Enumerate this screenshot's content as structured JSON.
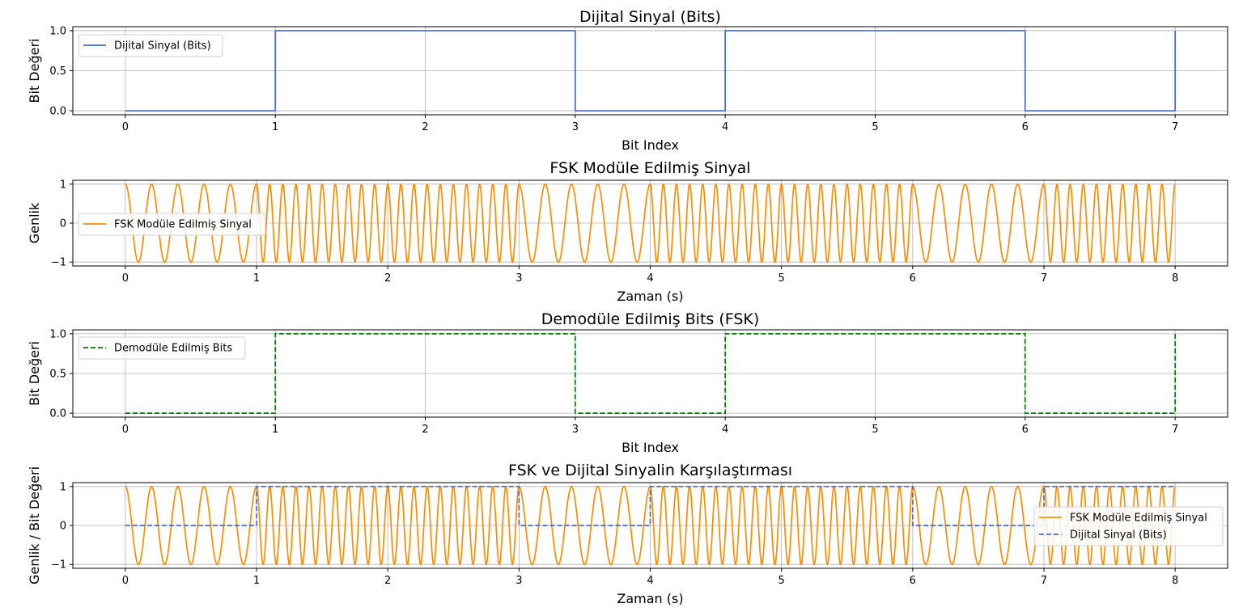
{
  "chart_data": [
    {
      "type": "line",
      "title": "Dijital Sinyal (Bits)",
      "xlabel": "Bit Index",
      "ylabel": "Bit Değeri",
      "xlim": [
        -0.35,
        7.35
      ],
      "ylim": [
        -0.05,
        1.05
      ],
      "xticks": [
        "0",
        "1",
        "2",
        "3",
        "4",
        "5",
        "6",
        "7"
      ],
      "yticks": [
        "0.0",
        "0.5",
        "1.0"
      ],
      "grid": true,
      "legend_position": "upper-left",
      "series": [
        {
          "name": "Dijital Sinyal (Bits)",
          "kind": "step",
          "color": "#4169e1",
          "style": "solid",
          "x": [
            0,
            1,
            2,
            3,
            4,
            5,
            6,
            7
          ],
          "values": [
            0,
            1,
            1,
            0,
            1,
            1,
            0,
            1
          ]
        }
      ]
    },
    {
      "type": "line",
      "title": "FSK Modüle Edilmiş Sinyal",
      "xlabel": "Zaman (s)",
      "ylabel": "Genlik",
      "xlim": [
        -0.4,
        8.4
      ],
      "ylim": [
        -1.1,
        1.1
      ],
      "xticks": [
        "0",
        "1",
        "2",
        "3",
        "4",
        "5",
        "6",
        "7",
        "8"
      ],
      "yticks": [
        "−1",
        "0",
        "1"
      ],
      "grid": true,
      "legend_position": "center-left",
      "bits": [
        0,
        1,
        1,
        0,
        1,
        1,
        0,
        1
      ],
      "freq_bit0_hz": 5,
      "freq_bit1_hz": 10,
      "series": [
        {
          "name": "FSK Modüle Edilmiş Sinyal",
          "kind": "fsk",
          "color": "#ff8c00",
          "style": "solid"
        }
      ]
    },
    {
      "type": "line",
      "title": "Demodüle Edilmiş Bits (FSK)",
      "xlabel": "Bit Index",
      "ylabel": "Bit Değeri",
      "xlim": [
        -0.35,
        7.35
      ],
      "ylim": [
        -0.05,
        1.05
      ],
      "xticks": [
        "0",
        "1",
        "2",
        "3",
        "4",
        "5",
        "6",
        "7"
      ],
      "yticks": [
        "0.0",
        "0.5",
        "1.0"
      ],
      "grid": true,
      "legend_position": "upper-left",
      "series": [
        {
          "name": "Demodüle Edilmiş Bits",
          "kind": "step",
          "color": "#008000",
          "style": "dashed",
          "x": [
            0,
            1,
            2,
            3,
            4,
            5,
            6,
            7
          ],
          "values": [
            0,
            1,
            1,
            0,
            1,
            1,
            0,
            1
          ]
        }
      ]
    },
    {
      "type": "line",
      "title": "FSK ve Dijital Sinyalin Karşılaştırması",
      "xlabel": "Zaman (s)",
      "ylabel": "Genlik / Bit Değeri",
      "xlim": [
        -0.4,
        8.4
      ],
      "ylim": [
        -1.1,
        1.1
      ],
      "xticks": [
        "0",
        "1",
        "2",
        "3",
        "4",
        "5",
        "6",
        "7",
        "8"
      ],
      "yticks": [
        "−1",
        "0",
        "1"
      ],
      "grid": true,
      "legend_position": "center-right",
      "bits": [
        0,
        1,
        1,
        0,
        1,
        1,
        0,
        1
      ],
      "freq_bit0_hz": 5,
      "freq_bit1_hz": 10,
      "series": [
        {
          "name": "FSK Modüle Edilmiş Sinyal",
          "kind": "fsk",
          "color": "#ff8c00",
          "style": "solid"
        },
        {
          "name": "Dijital Sinyal (Bits)",
          "kind": "segments",
          "color": "#4169e1",
          "style": "dashed",
          "x": [
            0,
            1,
            3,
            4,
            6,
            7,
            8
          ],
          "values": [
            0,
            1,
            0,
            1,
            0,
            1,
            1
          ]
        }
      ]
    }
  ]
}
